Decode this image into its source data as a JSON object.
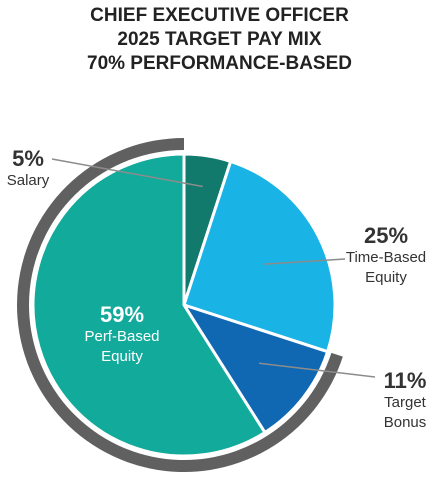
{
  "chart_data": {
    "type": "pie",
    "title": [
      "CHIEF EXECUTIVE OFFICER",
      "2025 TARGET PAY MIX",
      "70% PERFORMANCE-BASED"
    ],
    "slices": [
      {
        "pct_label": "5%",
        "value": 5,
        "name_lines": [
          "Salary"
        ],
        "color": "#127a6c"
      },
      {
        "pct_label": "25%",
        "value": 25,
        "name_lines": [
          "Time-Based",
          "Equity"
        ],
        "color": "#1ab3e6"
      },
      {
        "pct_label": "11%",
        "value": 11,
        "name_lines": [
          "Target",
          "Bonus"
        ],
        "color": "#1068b3"
      },
      {
        "pct_label": "59%",
        "value": 59,
        "name_lines": [
          "Perf-Based",
          "Equity"
        ],
        "color": "#12aa9b"
      }
    ],
    "performance_based_ring": {
      "covers": [
        "Perf-Based Equity",
        "Target Bonus"
      ],
      "color": "#606060"
    }
  }
}
